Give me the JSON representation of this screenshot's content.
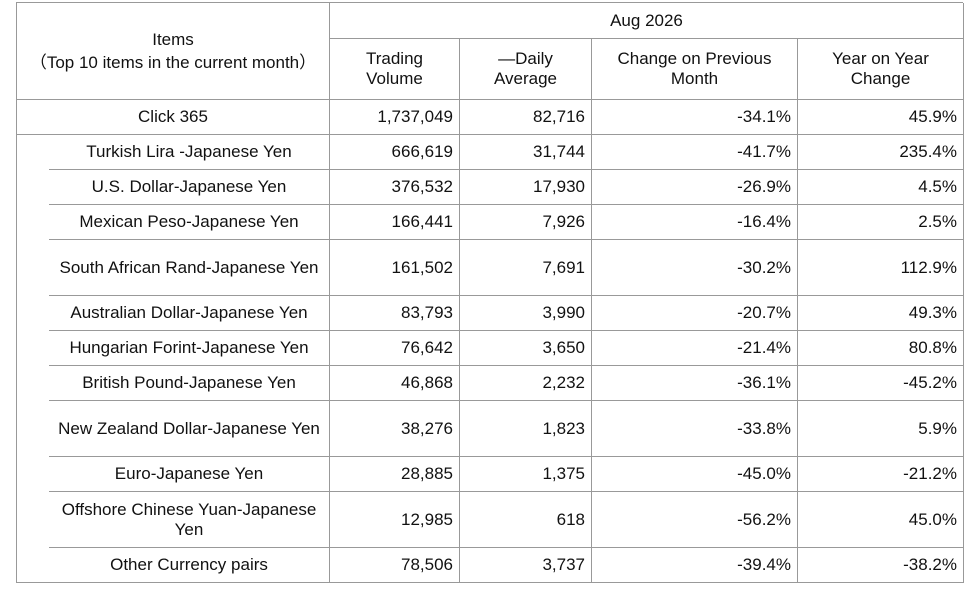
{
  "header": {
    "items_title": "Items",
    "items_subtitle": "（Top 10 items in the current month）",
    "period": "Aug 2026",
    "columns": [
      "Trading Volume",
      "—Daily Average",
      "Change on Previous Month",
      "Year on Year Change"
    ]
  },
  "table": {
    "rows": [
      [
        "Click 365",
        "1,737,049",
        "82,716",
        "-34.1%",
        "45.9%"
      ],
      [
        "Turkish Lira -Japanese Yen",
        "666,619",
        "31,744",
        "-41.7%",
        "235.4%"
      ],
      [
        "U.S. Dollar-Japanese Yen",
        "376,532",
        "17,930",
        "-26.9%",
        "4.5%"
      ],
      [
        "Mexican Peso-Japanese Yen",
        "166,441",
        "7,926",
        "-16.4%",
        "2.5%"
      ],
      [
        "South African Rand-Japanese Yen",
        "161,502",
        "7,691",
        "-30.2%",
        "112.9%"
      ],
      [
        "Australian Dollar-Japanese Yen",
        "83,793",
        "3,990",
        "-20.7%",
        "49.3%"
      ],
      [
        "Hungarian Forint-Japanese Yen",
        "76,642",
        "3,650",
        "-21.4%",
        "80.8%"
      ],
      [
        "British Pound-Japanese Yen",
        "46,868",
        "2,232",
        "-36.1%",
        "-45.2%"
      ],
      [
        "New Zealand Dollar-Japanese Yen",
        "38,276",
        "1,823",
        "-33.8%",
        "5.9%"
      ],
      [
        "Euro-Japanese Yen",
        "28,885",
        "1,375",
        "-45.0%",
        "-21.2%"
      ],
      [
        "Offshore Chinese Yuan-Japanese Yen",
        "12,985",
        "618",
        "-56.2%",
        "45.0%"
      ],
      [
        "Other Currency pairs",
        "78,506",
        "3,737",
        "-39.4%",
        "-38.2%"
      ]
    ]
  }
}
